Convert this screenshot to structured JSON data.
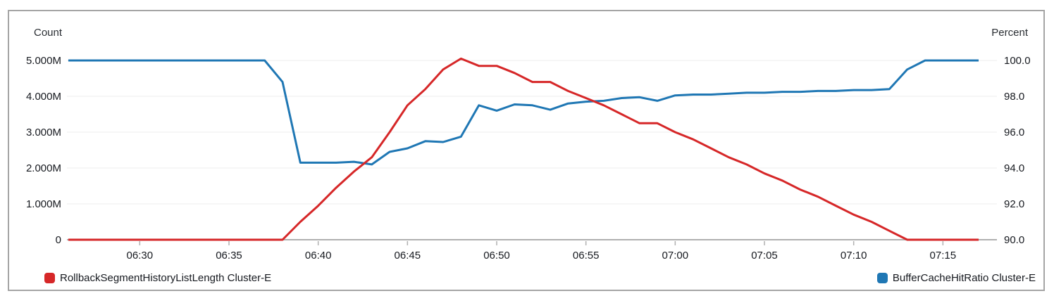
{
  "card": {
    "border_color": "#a5a5a5",
    "background": "#ffffff"
  },
  "chart_data": {
    "type": "line",
    "title": "",
    "grid": true,
    "legend_position": "bottom",
    "grid_color": "#ededed",
    "axis_color": "#b0b0b0",
    "text_color": "#16191f",
    "x": [
      "06:26",
      "06:27",
      "06:28",
      "06:29",
      "06:30",
      "06:31",
      "06:32",
      "06:33",
      "06:34",
      "06:35",
      "06:36",
      "06:37",
      "06:38",
      "06:39",
      "06:40",
      "06:41",
      "06:42",
      "06:43",
      "06:44",
      "06:45",
      "06:46",
      "06:47",
      "06:48",
      "06:49",
      "06:50",
      "06:51",
      "06:52",
      "06:53",
      "06:54",
      "06:55",
      "06:56",
      "06:57",
      "06:58",
      "06:59",
      "07:00",
      "07:01",
      "07:02",
      "07:03",
      "07:04",
      "07:05",
      "07:06",
      "07:07",
      "07:08",
      "07:09",
      "07:10",
      "07:11",
      "07:12",
      "07:13",
      "07:14",
      "07:15",
      "07:16",
      "07:17"
    ],
    "x_tick_labels": [
      "06:30",
      "06:35",
      "06:40",
      "06:45",
      "06:50",
      "06:55",
      "07:00",
      "07:05",
      "07:10",
      "07:15"
    ],
    "left_axis": {
      "title": "Count",
      "tick_labels": [
        "5.000M",
        "4.000M",
        "3.000M",
        "2.000M",
        "1.000M",
        "0"
      ],
      "min": 0,
      "max": 5000000
    },
    "right_axis": {
      "title": "Percent",
      "tick_labels": [
        "100.0",
        "98.0",
        "96.0",
        "94.0",
        "92.0",
        "90.0"
      ],
      "min": 90,
      "max": 100
    },
    "series": [
      {
        "name": "RollbackSegmentHistoryListLength Cluster-E",
        "axis": "left",
        "color": "#d62728",
        "values": [
          0,
          0,
          0,
          0,
          0,
          0,
          0,
          0,
          0,
          0,
          0,
          0,
          0,
          500000,
          950000,
          1450000,
          1900000,
          2300000,
          3000000,
          3750000,
          4200000,
          4750000,
          5050000,
          4850000,
          4850000,
          4650000,
          4400000,
          4400000,
          4150000,
          3950000,
          3750000,
          3500000,
          3250000,
          3250000,
          3000000,
          2800000,
          2550000,
          2300000,
          2100000,
          1850000,
          1650000,
          1400000,
          1200000,
          950000,
          700000,
          500000,
          250000,
          0,
          0,
          0,
          0,
          0
        ]
      },
      {
        "name": "BufferCacheHitRatio Cluster-E",
        "axis": "right",
        "color": "#1f77b4",
        "values": [
          100,
          100,
          100,
          100,
          100,
          100,
          100,
          100,
          100,
          100,
          100,
          100,
          98.8,
          94.3,
          94.3,
          94.3,
          94.35,
          94.2,
          94.9,
          95.1,
          95.5,
          95.45,
          95.75,
          97.5,
          97.2,
          97.55,
          97.5,
          97.25,
          97.6,
          97.7,
          97.75,
          97.9,
          97.95,
          97.75,
          98.05,
          98.1,
          98.1,
          98.15,
          98.2,
          98.2,
          98.25,
          98.25,
          98.3,
          98.3,
          98.35,
          98.35,
          98.4,
          99.5,
          100,
          100,
          100,
          100
        ]
      }
    ]
  }
}
